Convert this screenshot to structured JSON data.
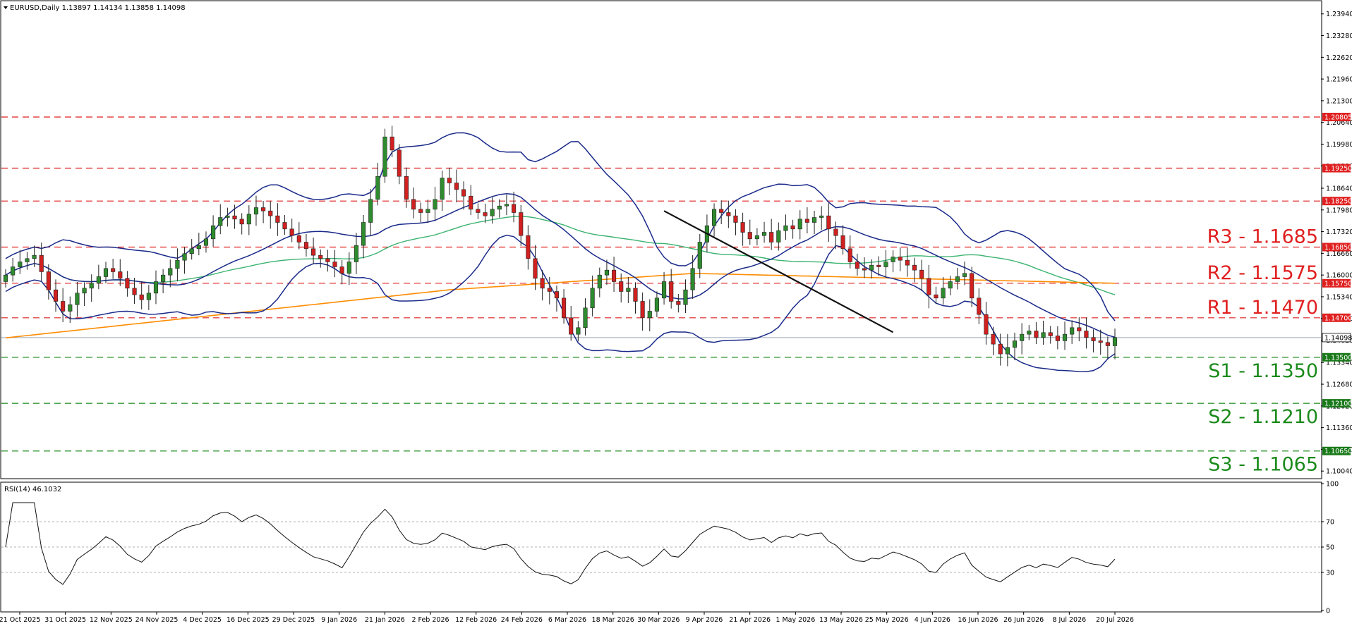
{
  "chart_data": {
    "type": "candlestick",
    "symbol_header": "EURUSD,Daily  1.13897 1.14134 1.13858 1.14098",
    "price_axis": {
      "ylim": [
        1.0983,
        1.2432
      ],
      "ticks": [
        "1.23940",
        "1.23280",
        "1.22620",
        "1.21960",
        "1.21300",
        "1.20640",
        "1.19980",
        "1.19320",
        "1.18640",
        "1.17980",
        "1.17320",
        "1.16660",
        "1.16000",
        "1.15340",
        "1.14680",
        "1.14020",
        "1.13340",
        "1.12680",
        "1.12020",
        "1.11360",
        "1.10700",
        "1.10040"
      ]
    },
    "date_labels": [
      "21 Oct 2025",
      "31 Oct 2025",
      "12 Nov 2025",
      "24 Nov 2025",
      "4 Dec 2025",
      "16 Dec 2025",
      "29 Dec 2025",
      "9 Jan 2026",
      "21 Jan 2026",
      "2 Feb 2026",
      "12 Feb 2026",
      "24 Feb 2026",
      "6 Mar 2026",
      "18 Mar 2026",
      "30 Mar 2026",
      "9 Apr 2026",
      "21 Apr 2026",
      "1 May 2026",
      "13 May 2026",
      "25 May 2026",
      "4 Jun 2026",
      "16 Jun 2026",
      "26 Jun 2026",
      "8 Jul 2026",
      "20 Jul 2026"
    ],
    "current_price": "1.14098",
    "levels": [
      {
        "label": "R3 - 1.1685",
        "value": 1.1685,
        "tag": "1.16850",
        "kind": "resistance"
      },
      {
        "label": "R2 - 1.1575",
        "value": 1.1575,
        "tag": "1.15750",
        "kind": "resistance"
      },
      {
        "label": "R1 - 1.1470",
        "value": 1.147,
        "tag": "1.14700",
        "kind": "resistance"
      },
      {
        "label": "S1 - 1.1350",
        "value": 1.135,
        "tag": "1.13500",
        "kind": "support"
      },
      {
        "label": "S2 - 1.1210",
        "value": 1.121,
        "tag": "1.12100",
        "kind": "support"
      },
      {
        "label": "S3 - 1.1065",
        "value": 1.1065,
        "tag": "1.10650",
        "kind": "support"
      }
    ],
    "extra_lines": [
      {
        "value": 1.20805,
        "tag": "1.20805"
      },
      {
        "value": 1.1925,
        "tag": "1.19250"
      },
      {
        "value": 1.1825,
        "tag": "1.18250"
      }
    ],
    "closes": [
      1.16,
      1.1625,
      1.164,
      1.165,
      1.166,
      1.161,
      1.1555,
      1.152,
      1.149,
      1.151,
      1.1545,
      1.156,
      1.1575,
      1.1595,
      1.162,
      1.161,
      1.159,
      1.156,
      1.154,
      1.1525,
      1.1545,
      1.158,
      1.16,
      1.162,
      1.1645,
      1.1665,
      1.168,
      1.169,
      1.171,
      1.175,
      1.1775,
      1.178,
      1.177,
      1.1755,
      1.1785,
      1.1805,
      1.1795,
      1.178,
      1.176,
      1.174,
      1.172,
      1.17,
      1.168,
      1.166,
      1.165,
      1.164,
      1.1625,
      1.1605,
      1.164,
      1.169,
      1.176,
      1.183,
      1.19,
      1.202,
      1.198,
      1.19,
      1.183,
      1.18,
      1.179,
      1.18,
      1.183,
      1.1895,
      1.188,
      1.186,
      1.184,
      1.18,
      1.179,
      1.178,
      1.18,
      1.181,
      1.1815,
      1.179,
      1.172,
      1.165,
      1.159,
      1.156,
      1.155,
      1.153,
      1.147,
      1.142,
      1.144,
      1.15,
      1.156,
      1.16,
      1.1615,
      1.158,
      1.155,
      1.156,
      1.152,
      1.147,
      1.149,
      1.153,
      1.158,
      1.152,
      1.151,
      1.1555,
      1.162,
      1.17,
      1.175,
      1.18,
      1.179,
      1.178,
      1.176,
      1.173,
      1.171,
      1.172,
      1.173,
      1.17,
      1.1735,
      1.175,
      1.174,
      1.177,
      1.176,
      1.1775,
      1.178,
      1.174,
      1.172,
      1.168,
      1.164,
      1.162,
      1.1615,
      1.163,
      1.1625,
      1.164,
      1.1655,
      1.1645,
      1.163,
      1.1615,
      1.159,
      1.154,
      1.153,
      1.156,
      1.158,
      1.1595,
      1.1605,
      1.153,
      1.148,
      1.142,
      1.139,
      1.136,
      1.138,
      1.14,
      1.142,
      1.143,
      1.141,
      1.1425,
      1.1415,
      1.14,
      1.142,
      1.144,
      1.143,
      1.141,
      1.14,
      1.1395,
      1.1385,
      1.141
    ]
  },
  "rsi": {
    "header": "RSI(14) 46.1032",
    "ticks": [
      "100",
      "70",
      "50",
      "30",
      "0"
    ]
  },
  "colors": {
    "bull": "#2e8b2e",
    "bear": "#d02020",
    "bands": "#1a2a8a",
    "ma_green": "#3cb371",
    "ma_orange": "#ff8c00",
    "resistance": "#e02020",
    "support": "#1a8a1a",
    "trendline": "#111111"
  }
}
